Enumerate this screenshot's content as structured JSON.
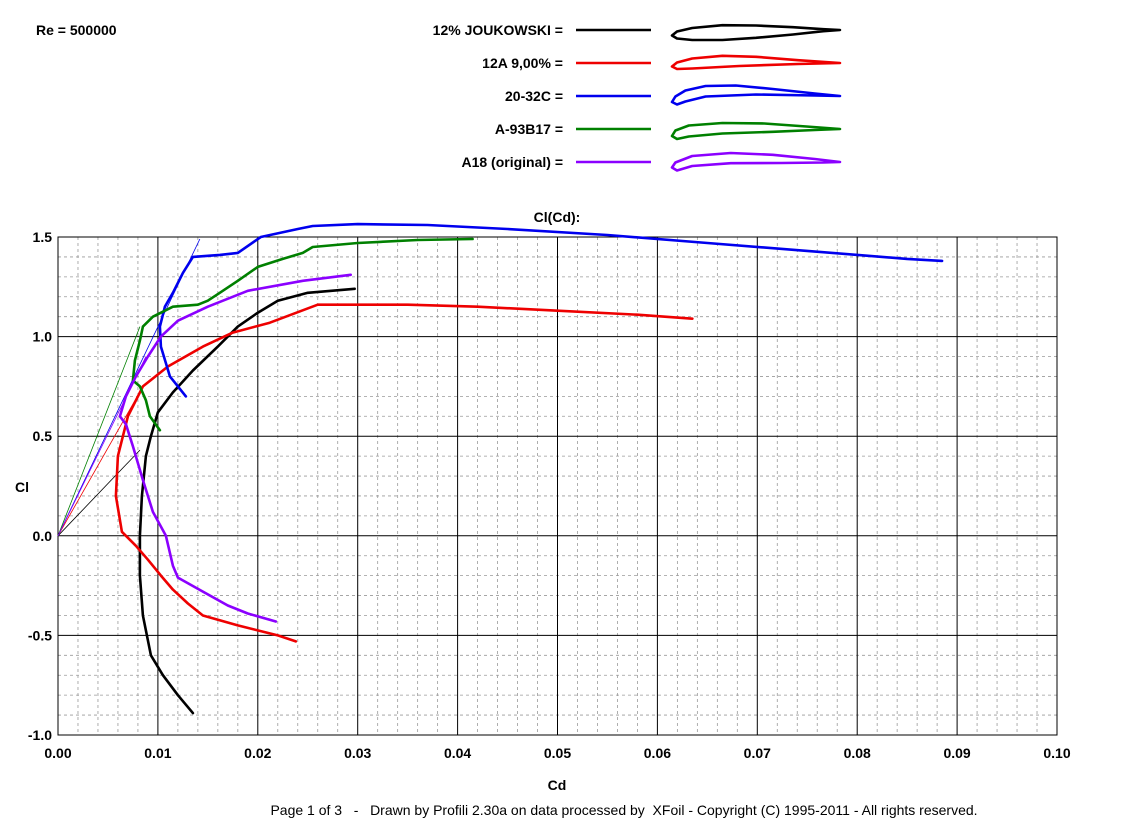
{
  "chart_data": {
    "type": "line",
    "title": "Cl(Cd):",
    "reynolds_label": "Re = 500000",
    "xlabel": "Cd",
    "ylabel": "Cl",
    "xlim": [
      0,
      0.1
    ],
    "ylim": [
      -1.0,
      1.5
    ],
    "x_ticks": [
      "0.00",
      "0.01",
      "0.02",
      "0.03",
      "0.04",
      "0.05",
      "0.06",
      "0.07",
      "0.08",
      "0.09",
      "0.10"
    ],
    "y_ticks": [
      "1.5",
      "1.0",
      "0.5",
      "0.0",
      "-0.5",
      "-1.0"
    ],
    "grid": true,
    "legend_position": "top-center",
    "series": [
      {
        "name": "12% JOUKOWSKI =",
        "color": "#000000",
        "points": [
          [
            0.0135,
            -0.89
          ],
          [
            0.012,
            -0.8
          ],
          [
            0.0105,
            -0.7
          ],
          [
            0.0093,
            -0.6
          ],
          [
            0.0085,
            -0.4
          ],
          [
            0.0082,
            -0.2
          ],
          [
            0.0082,
            0.0
          ],
          [
            0.0084,
            0.2
          ],
          [
            0.0088,
            0.4
          ],
          [
            0.0093,
            0.5
          ],
          [
            0.01,
            0.62
          ],
          [
            0.0115,
            0.72
          ],
          [
            0.0135,
            0.83
          ],
          [
            0.016,
            0.95
          ],
          [
            0.018,
            1.05
          ],
          [
            0.02,
            1.12
          ],
          [
            0.022,
            1.18
          ],
          [
            0.025,
            1.22
          ],
          [
            0.0297,
            1.24
          ]
        ]
      },
      {
        "name": "12A 9,00% =",
        "color": "#ee0000",
        "points": [
          [
            0.0238,
            -0.53
          ],
          [
            0.022,
            -0.5
          ],
          [
            0.018,
            -0.45
          ],
          [
            0.0145,
            -0.4
          ],
          [
            0.013,
            -0.34
          ],
          [
            0.0115,
            -0.27
          ],
          [
            0.0103,
            -0.2
          ],
          [
            0.009,
            -0.12
          ],
          [
            0.0078,
            -0.05
          ],
          [
            0.0064,
            0.02
          ],
          [
            0.0058,
            0.2
          ],
          [
            0.006,
            0.4
          ],
          [
            0.007,
            0.6
          ],
          [
            0.0085,
            0.75
          ],
          [
            0.011,
            0.85
          ],
          [
            0.0145,
            0.95
          ],
          [
            0.0175,
            1.02
          ],
          [
            0.0212,
            1.07
          ],
          [
            0.026,
            1.16
          ],
          [
            0.035,
            1.16
          ],
          [
            0.042,
            1.15
          ],
          [
            0.05,
            1.13
          ],
          [
            0.058,
            1.11
          ],
          [
            0.0635,
            1.09
          ]
        ]
      },
      {
        "name": "20-32C =",
        "color": "#0000ee",
        "points": [
          [
            0.0128,
            0.7
          ],
          [
            0.0112,
            0.8
          ],
          [
            0.0103,
            0.95
          ],
          [
            0.0102,
            1.05
          ],
          [
            0.0107,
            1.15
          ],
          [
            0.0115,
            1.22
          ],
          [
            0.0125,
            1.32
          ],
          [
            0.0135,
            1.4
          ],
          [
            0.0162,
            1.41
          ],
          [
            0.018,
            1.42
          ],
          [
            0.0203,
            1.5
          ],
          [
            0.024,
            1.54
          ],
          [
            0.0255,
            1.555
          ],
          [
            0.03,
            1.565
          ],
          [
            0.037,
            1.56
          ],
          [
            0.045,
            1.54
          ],
          [
            0.055,
            1.51
          ],
          [
            0.065,
            1.47
          ],
          [
            0.075,
            1.43
          ],
          [
            0.085,
            1.39
          ],
          [
            0.0885,
            1.38
          ]
        ]
      },
      {
        "name": "A-93B17 =",
        "color": "#008000",
        "points": [
          [
            0.0102,
            0.53
          ],
          [
            0.0092,
            0.6
          ],
          [
            0.0088,
            0.68
          ],
          [
            0.0082,
            0.75
          ],
          [
            0.0075,
            0.78
          ],
          [
            0.0077,
            0.88
          ],
          [
            0.0082,
            0.98
          ],
          [
            0.0085,
            1.05
          ],
          [
            0.0095,
            1.1
          ],
          [
            0.0115,
            1.15
          ],
          [
            0.014,
            1.16
          ],
          [
            0.015,
            1.18
          ],
          [
            0.0162,
            1.22
          ],
          [
            0.018,
            1.28
          ],
          [
            0.02,
            1.35
          ],
          [
            0.0225,
            1.39
          ],
          [
            0.0245,
            1.42
          ],
          [
            0.0255,
            1.45
          ],
          [
            0.03,
            1.47
          ],
          [
            0.036,
            1.485
          ],
          [
            0.0415,
            1.49
          ]
        ]
      },
      {
        "name": "A18 (original) =",
        "color": "#8b00ff",
        "points": [
          [
            0.0218,
            -0.43
          ],
          [
            0.019,
            -0.39
          ],
          [
            0.017,
            -0.35
          ],
          [
            0.0145,
            -0.28
          ],
          [
            0.012,
            -0.21
          ],
          [
            0.0115,
            -0.15
          ],
          [
            0.0108,
            0.0
          ],
          [
            0.0095,
            0.12
          ],
          [
            0.0085,
            0.28
          ],
          [
            0.0075,
            0.45
          ],
          [
            0.0068,
            0.56
          ],
          [
            0.0062,
            0.6
          ],
          [
            0.0068,
            0.7
          ],
          [
            0.0078,
            0.8
          ],
          [
            0.009,
            0.9
          ],
          [
            0.0103,
            1.0
          ],
          [
            0.012,
            1.08
          ],
          [
            0.015,
            1.15
          ],
          [
            0.019,
            1.23
          ],
          [
            0.0245,
            1.28
          ],
          [
            0.0293,
            1.31
          ]
        ]
      }
    ],
    "tangent_lines": [
      {
        "color": "#000000",
        "to": [
          0.0082,
          0.43
        ]
      },
      {
        "color": "#ee0000",
        "to": [
          0.0085,
          0.75
        ]
      },
      {
        "color": "#0000ee",
        "to": [
          0.0142,
          1.49
        ]
      },
      {
        "color": "#008000",
        "to": [
          0.0082,
          1.05
        ]
      },
      {
        "color": "#8b00ff",
        "to": [
          0.0088,
          0.9
        ]
      }
    ]
  },
  "footer": "Page 1 of 3   -   Drawn by Profili 2.30a on data processed by  XFoil - Copyright (C) 1995-2011 - All rights reserved."
}
